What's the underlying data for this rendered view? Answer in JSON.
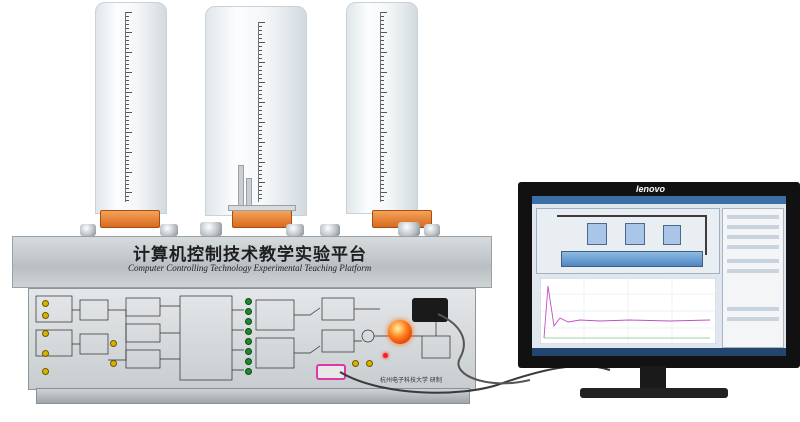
{
  "panel": {
    "title_cn": "计算机控制技术教学实验平台",
    "title_en": "Computer Controlling Technology Experimental Teaching Platform",
    "maker": "杭州电子科技大学 研制"
  },
  "monitor": {
    "brand": "lenovo"
  },
  "colors": {
    "flange": "#e8812e",
    "cabinet": "#c4c9cc",
    "screen_bg": "#dfe6ee",
    "plot_line": "#c24fc2",
    "indicator_red": "#ff3b1f"
  }
}
